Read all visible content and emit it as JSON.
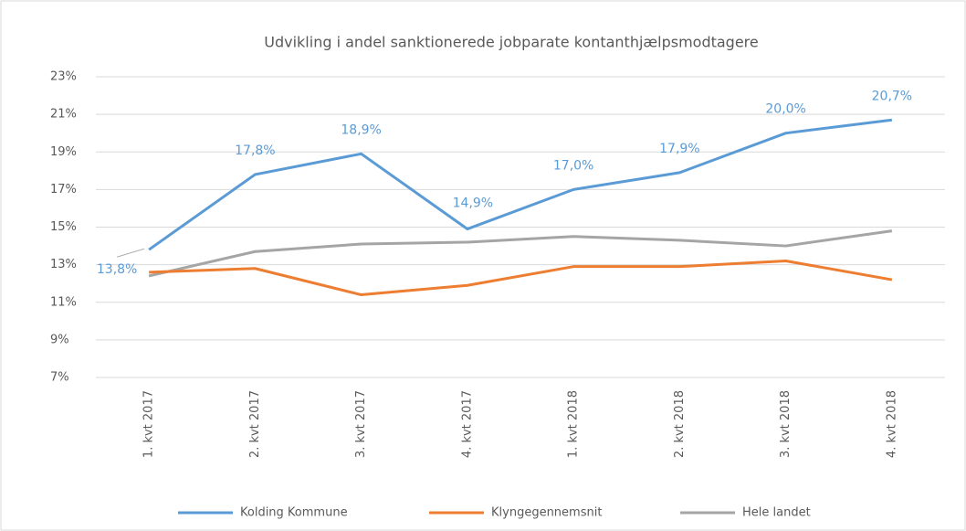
{
  "chart_data": {
    "type": "line",
    "title": "Udvikling i andel sanktionerede jobparate kontanthjælpsmodtagere",
    "categories": [
      "1. kvt 2017",
      "2. kvt 2017",
      "3. kvt 2017",
      "4. kvt 2017",
      "1. kvt 2018",
      "2. kvt 2018",
      "3. kvt 2018",
      "4. kvt 2018"
    ],
    "series": [
      {
        "name": "Kolding Kommune",
        "color": "#5b9bd5",
        "values": [
          13.8,
          17.8,
          18.9,
          14.9,
          17.0,
          17.9,
          20.0,
          20.7
        ],
        "value_labels": [
          "13,8%",
          "17,8%",
          "18,9%",
          "14,9%",
          "17,0%",
          "17,9%",
          "20,0%",
          "20,7%"
        ]
      },
      {
        "name": "Klyngegennemsnit",
        "color": "#ed7d31",
        "values": [
          12.6,
          12.8,
          11.4,
          11.9,
          12.9,
          12.9,
          13.2,
          12.2
        ]
      },
      {
        "name": "Hele landet",
        "color": "#a5a5a5",
        "values": [
          12.4,
          13.7,
          14.1,
          14.2,
          14.5,
          14.3,
          14.0,
          14.8
        ]
      }
    ],
    "ylim": [
      7,
      23
    ],
    "yticks": [
      {
        "value": 7,
        "label": "7%"
      },
      {
        "value": 9,
        "label": "9%"
      },
      {
        "value": 11,
        "label": "11%"
      },
      {
        "value": 13,
        "label": "13%"
      },
      {
        "value": 15,
        "label": "15%"
      },
      {
        "value": 17,
        "label": "17%"
      },
      {
        "value": 19,
        "label": "19%"
      },
      {
        "value": 21,
        "label": "21%"
      },
      {
        "value": 23,
        "label": "23%"
      }
    ],
    "grid": true,
    "legend": "bottom"
  }
}
